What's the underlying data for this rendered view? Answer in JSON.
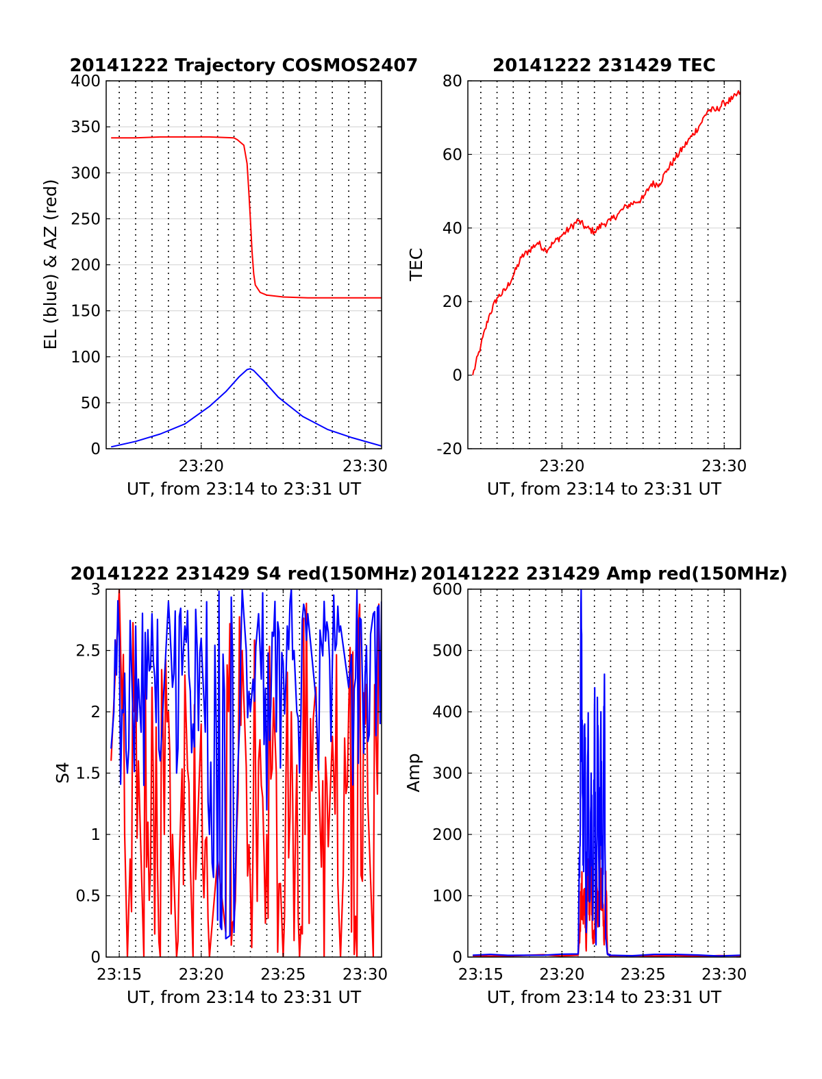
{
  "figure": {
    "background": "#ffffff"
  },
  "colors": {
    "blue": "#0000ff",
    "red": "#ff0000",
    "grid": "#d9d9d9",
    "axis": "#000000"
  },
  "panels": [
    {
      "title": "20141222 Trajectory COSMOS2407",
      "xlabel": "UT, from 23:14 to 23:31 UT",
      "ylabel": "EL (blue) & AZ (red)",
      "xticks": [
        "23:20",
        "23:30"
      ],
      "yticks": [
        "0",
        "50",
        "100",
        "150",
        "200",
        "250",
        "300",
        "350",
        "400"
      ]
    },
    {
      "title": "20141222 231429 TEC",
      "xlabel": "UT, from 23:14 to 23:31 UT",
      "ylabel": "TEC",
      "xticks": [
        "23:20",
        "23:30"
      ],
      "yticks": [
        "-20",
        "0",
        "20",
        "40",
        "60",
        "80"
      ]
    },
    {
      "title": "20141222 231429 S4 red(150MHz)",
      "xlabel": "UT, from 23:14 to 23:31 UT",
      "ylabel": "S4",
      "xticks": [
        "23:15",
        "23:20",
        "23:25",
        "23:30"
      ],
      "yticks": [
        "0",
        "0.5",
        "1",
        "1.5",
        "2",
        "2.5",
        "3"
      ]
    },
    {
      "title": "20141222 231429 Amp red(150MHz)",
      "xlabel": "UT, from 23:14 to 23:31 UT",
      "ylabel": "Amp",
      "xticks": [
        "23:15",
        "23:20",
        "23:25",
        "23:30"
      ],
      "yticks": [
        "0",
        "100",
        "200",
        "300",
        "400",
        "500",
        "600"
      ]
    }
  ],
  "chart_data": [
    {
      "type": "line",
      "title": "20141222 Trajectory COSMOS2407",
      "xlabel": "UT, from 23:14 to 23:31 UT",
      "ylabel": "EL (blue) & AZ (red)",
      "xlim": [
        23.2367,
        23.5167
      ],
      "ylim": [
        0,
        400
      ],
      "grid": true,
      "x_unit": "hours UT",
      "series": [
        {
          "color": "#ff0000",
          "x": [
            23.2417,
            23.2667,
            23.2917,
            23.3167,
            23.3417,
            23.3667,
            23.37,
            23.3767,
            23.38,
            23.3817,
            23.3833,
            23.385,
            23.3867,
            23.3883,
            23.3933,
            23.4,
            23.4167,
            23.4417,
            23.4667,
            23.4917,
            23.5167
          ],
          "y": [
            338,
            338,
            339,
            339,
            339,
            338,
            336,
            330,
            310,
            280,
            250,
            215,
            190,
            178,
            170,
            167,
            165,
            164,
            164,
            164,
            164
          ]
        },
        {
          "color": "#0000ff",
          "x": [
            23.2417,
            23.2667,
            23.2917,
            23.3167,
            23.3417,
            23.3583,
            23.3717,
            23.38,
            23.3833,
            23.3867,
            23.3967,
            23.4117,
            23.4367,
            23.4617,
            23.4867,
            23.5167
          ],
          "y": [
            2,
            8,
            16,
            27,
            46,
            62,
            78,
            86,
            87,
            85,
            74,
            56,
            35,
            21,
            12,
            3
          ]
        }
      ]
    },
    {
      "type": "line",
      "title": "20141222 231429 TEC",
      "xlabel": "UT, from 23:14 to 23:31 UT",
      "ylabel": "TEC",
      "xlim": [
        23.2367,
        23.5167
      ],
      "ylim": [
        -20,
        80
      ],
      "grid": true,
      "x_unit": "hours UT",
      "series": [
        {
          "color": "#ff0000",
          "x": [
            23.2417,
            23.25,
            23.2583,
            23.2667,
            23.275,
            23.2833,
            23.2917,
            23.3,
            23.3083,
            23.3167,
            23.325,
            23.3333,
            23.3417,
            23.35,
            23.3583,
            23.3667,
            23.375,
            23.3833,
            23.3917,
            23.4,
            23.4083,
            23.4167,
            23.425,
            23.4333,
            23.4417,
            23.45,
            23.4583,
            23.4667,
            23.475,
            23.4833,
            23.4917,
            23.5,
            23.5083,
            23.5167
          ],
          "y": [
            0,
            8,
            16,
            21,
            23,
            27,
            32,
            34,
            36,
            34,
            36,
            38,
            40,
            42,
            40,
            39,
            41,
            42,
            44,
            46,
            47,
            48,
            52,
            52,
            56,
            59,
            62,
            65,
            68,
            72,
            72,
            74,
            75,
            77
          ]
        }
      ]
    },
    {
      "type": "line",
      "title": "20141222 231429 S4 red(150MHz)",
      "xlabel": "UT, from 23:14 to 23:31 UT",
      "ylabel": "S4",
      "xlim": [
        23.2367,
        23.5167
      ],
      "ylim": [
        0,
        3
      ],
      "grid": true,
      "x_unit": "hours UT",
      "series": [
        {
          "color": "#ff0000",
          "x": [
            23.2417,
            23.25,
            23.2583,
            23.2667,
            23.275,
            23.2833,
            23.2917,
            23.3,
            23.3083,
            23.3167,
            23.325,
            23.3333,
            23.3417,
            23.35,
            23.3583,
            23.3667,
            23.375,
            23.3833,
            23.3917,
            23.4,
            23.4083,
            23.4167,
            23.425,
            23.4333,
            23.4417,
            23.45,
            23.4583,
            23.4667,
            23.475,
            23.4833,
            23.4917,
            23.5,
            23.5083,
            23.5167
          ],
          "y": [
            1.6,
            3.0,
            0.0,
            2.4,
            0.0,
            2.2,
            0.0,
            2.0,
            0.0,
            2.3,
            0.0,
            1.9,
            0.0,
            0.8,
            0.2,
            0.3,
            2.5,
            0.6,
            1.6,
            1.0,
            1.8,
            0.0,
            2.0,
            0.0,
            1.5,
            2.2,
            0.0,
            1.8,
            0.0,
            2.0,
            0.0,
            1.9,
            0.0,
            2.4
          ]
        },
        {
          "color": "#0000ff",
          "x": [
            23.2417,
            23.25,
            23.2583,
            23.2667,
            23.275,
            23.2833,
            23.2917,
            23.3,
            23.3083,
            23.3167,
            23.325,
            23.3333,
            23.3417,
            23.35,
            23.3583,
            23.3667,
            23.375,
            23.3833,
            23.3917,
            23.4,
            23.4083,
            23.4167,
            23.425,
            23.4333,
            23.4417,
            23.45,
            23.4583,
            23.4667,
            23.475,
            23.4833,
            23.4917,
            23.5,
            23.5083,
            23.5167
          ],
          "y": [
            1.7,
            2.6,
            1.5,
            2.7,
            1.4,
            2.8,
            1.6,
            2.9,
            1.5,
            2.7,
            1.9,
            2.6,
            1.0,
            0.3,
            0.15,
            0.2,
            3.0,
            2.0,
            2.8,
            1.2,
            2.9,
            2.4,
            3.0,
            1.5,
            2.8,
            2.1,
            2.9,
            2.4,
            2.7,
            2.2,
            3.0,
            2.3,
            2.8,
            2.9
          ]
        }
      ]
    },
    {
      "type": "line",
      "title": "20141222 231429 Amp red(150MHz)",
      "xlabel": "UT, from 23:14 to 23:31 UT",
      "ylabel": "Amp",
      "xlim": [
        23.2367,
        23.5167
      ],
      "ylim": [
        0,
        600
      ],
      "grid": true,
      "x_unit": "hours UT",
      "series": [
        {
          "color": "#ff0000",
          "x": [
            23.2417,
            23.35,
            23.3517,
            23.3533,
            23.355,
            23.3567,
            23.3583,
            23.36,
            23.3617,
            23.3633,
            23.365,
            23.3667,
            23.3683,
            23.37,
            23.3717,
            23.3733,
            23.375,
            23.3767,
            23.3783,
            23.38,
            23.3833,
            23.5167
          ],
          "y": [
            2,
            3,
            40,
            120,
            80,
            100,
            10,
            160,
            60,
            150,
            30,
            40,
            170,
            60,
            150,
            120,
            90,
            20,
            140,
            5,
            2,
            2
          ]
        },
        {
          "color": "#0000ff",
          "x": [
            23.2417,
            23.35,
            23.3517,
            23.3533,
            23.355,
            23.3567,
            23.3583,
            23.36,
            23.3617,
            23.3633,
            23.365,
            23.3667,
            23.3683,
            23.37,
            23.3717,
            23.3733,
            23.375,
            23.3767,
            23.3783,
            23.38,
            23.3833,
            23.5167
          ],
          "y": [
            3,
            5,
            180,
            536,
            150,
            380,
            40,
            340,
            90,
            300,
            60,
            400,
            20,
            360,
            50,
            400,
            80,
            404,
            30,
            5,
            3,
            3
          ]
        }
      ]
    }
  ]
}
